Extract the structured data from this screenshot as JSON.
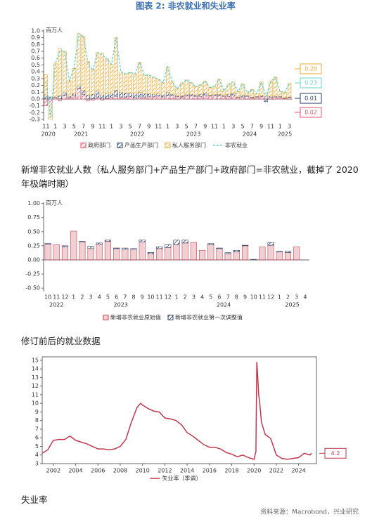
{
  "header": {
    "title": "图表 2:  非农就业和失业率"
  },
  "source": "资料来源：Macrobond，兴业研究",
  "chart_data": [
    {
      "type": "bar",
      "stacked": true,
      "caption": "新增非农就业人数（私人服务部门+产品生产部门+政府部门=非农就业，截掉了 2020 年极端时期）",
      "y_unit": "百万人",
      "categories": [
        "11",
        null,
        "1",
        null,
        "3",
        null,
        "5",
        null,
        "7",
        null,
        "9",
        null,
        "11",
        null,
        "1",
        null,
        "3",
        null,
        "5",
        null,
        "7",
        null,
        "9",
        null,
        "11",
        null,
        "1",
        null,
        "3",
        null,
        "5",
        null,
        "7",
        null,
        "9",
        null,
        "11",
        null,
        "1",
        null,
        "3",
        null,
        "5",
        null,
        "7",
        null,
        "9",
        null,
        "11",
        null,
        "1",
        null,
        "3"
      ],
      "year_groups": [
        {
          "label": "2020",
          "count": 2
        },
        {
          "label": "2021",
          "count": 12
        },
        {
          "label": "2022",
          "count": 12
        },
        {
          "label": "2023",
          "count": 12
        },
        {
          "label": "2024",
          "count": 12
        },
        {
          "label": "2025",
          "count": 3
        }
      ],
      "series": [
        {
          "name": "政府部门",
          "color": "#e8536a",
          "hatch": true,
          "end_label": "0.02",
          "values": [
            -0.1,
            -0.06,
            0.02,
            -0.03,
            0.05,
            0.02,
            0.05,
            0.15,
            0.07,
            -0.03,
            -0.02,
            0.03,
            -0.02,
            0.01,
            0.02,
            0.04,
            0.03,
            0.03,
            0.04,
            0.02,
            0.03,
            0.03,
            0.04,
            0.04,
            0.05,
            0.03,
            0.05,
            0.05,
            0.04,
            0.03,
            0.05,
            0.05,
            0.04,
            0.04,
            0.06,
            0.05,
            0.05,
            0.05,
            0.04,
            0.04,
            0.06,
            0.02,
            0.03,
            0.04,
            0.02,
            0.03,
            0.04,
            0.04,
            0.02,
            0.03,
            0.03,
            0.01,
            0.02
          ]
        },
        {
          "name": "产品生产部门",
          "color": "#2e3f66",
          "hatch": true,
          "end_label": "0.01",
          "values": [
            0.06,
            0.03,
            0.01,
            0.05,
            0.05,
            0.02,
            0.03,
            0.04,
            0.06,
            0.06,
            0.07,
            0.09,
            0.06,
            0.07,
            0.06,
            0.09,
            0.07,
            0.06,
            0.05,
            0.06,
            0.07,
            0.05,
            0.04,
            0.03,
            0.03,
            0.03,
            0.05,
            0.02,
            0.01,
            0.02,
            0.02,
            0.02,
            0.02,
            0.03,
            0.03,
            0.01,
            0.02,
            0.02,
            0.01,
            0.03,
            0.03,
            0.01,
            0.03,
            0.01,
            0.01,
            0.01,
            0.01,
            -0.04,
            0.02,
            0.01,
            0.01,
            0.01,
            0.01
          ]
        },
        {
          "name": "私人服务部门",
          "color": "#f0a830",
          "hatch": true,
          "end_label": "0.20",
          "values": [
            0.3,
            -0.24,
            0.49,
            0.69,
            0.6,
            0.23,
            0.37,
            0.77,
            0.79,
            0.49,
            0.37,
            0.56,
            0.61,
            0.51,
            0.43,
            0.77,
            0.3,
            0.28,
            0.3,
            0.29,
            0.44,
            0.27,
            0.27,
            0.25,
            0.21,
            0.18,
            0.37,
            0.18,
            0.1,
            0.18,
            0.21,
            0.17,
            0.12,
            0.14,
            0.17,
            0.11,
            0.11,
            0.22,
            0.07,
            0.15,
            0.16,
            0.08,
            0.16,
            0.04,
            0.11,
            0.04,
            0.2,
            0.04,
            0.22,
            0.28,
            0.07,
            0.08,
            0.2
          ]
        },
        {
          "name": "非农就业",
          "color": "#66d4cc",
          "type": "line",
          "end_label": "0.23",
          "values": [
            0.26,
            -0.27,
            0.52,
            0.71,
            0.7,
            0.27,
            0.45,
            0.96,
            0.92,
            0.52,
            0.42,
            0.68,
            0.65,
            0.59,
            0.51,
            0.9,
            0.4,
            0.37,
            0.39,
            0.37,
            0.54,
            0.35,
            0.35,
            0.32,
            0.29,
            0.24,
            0.47,
            0.25,
            0.15,
            0.23,
            0.28,
            0.24,
            0.18,
            0.21,
            0.26,
            0.17,
            0.18,
            0.29,
            0.12,
            0.22,
            0.25,
            0.11,
            0.22,
            0.09,
            0.14,
            0.08,
            0.25,
            0.04,
            0.26,
            0.32,
            0.11,
            0.1,
            0.23
          ]
        }
      ],
      "ylim": [
        -0.32,
        1.02
      ],
      "yticks": [
        {
          "value": 1,
          "label": "1.0"
        },
        0.9,
        0.8,
        0.7,
        0.6,
        0.5,
        0.4,
        0.3,
        0.2,
        0.1,
        {
          "value": 0,
          "label": "0.0"
        },
        -0.1,
        -0.2,
        -0.3
      ]
    },
    {
      "type": "bar",
      "stacked": true,
      "caption": "修订前后的就业数据",
      "y_unit": "百万人",
      "categories": [
        "10",
        "11",
        "12",
        "1",
        "2",
        "3",
        "4",
        "5",
        "6",
        "7",
        "8",
        "9",
        "10",
        "11",
        "12",
        "1",
        "2",
        "3",
        "4",
        "5",
        "6",
        "7",
        "8",
        "9",
        "10",
        "11",
        "12",
        "1",
        "2",
        "3",
        "4"
      ],
      "year_groups": [
        {
          "label": "2022",
          "count": 3
        },
        {
          "label": "2023",
          "count": 12
        },
        {
          "label": "2024",
          "count": 12
        },
        {
          "label": "2025",
          "count": 4
        }
      ],
      "series": [
        {
          "name": "新增非农就业原始值",
          "color": "#c9434f",
          "values": [
            0.28,
            0.27,
            0.25,
            0.51,
            0.32,
            0.24,
            0.28,
            0.33,
            0.21,
            0.19,
            0.19,
            0.32,
            0.13,
            0.2,
            0.22,
            0.27,
            0.3,
            0.31,
            0.17,
            0.27,
            0.21,
            0.11,
            0.14,
            0.25,
            0.01,
            0.23,
            0.26,
            0.14,
            0.13,
            0.23,
            null
          ]
        },
        {
          "name": "新增非农就业第一次调整值",
          "color": "#2e3f66",
          "hatch": true,
          "values": [
            0.01,
            0,
            -0.02,
            0,
            0.01,
            -0.04,
            0.02,
            0.02,
            -0.01,
            0.02,
            0.01,
            0.03,
            -0.02,
            0.03,
            0.05,
            0.08,
            0.05,
            0,
            0,
            0.02,
            -0.01,
            0.02,
            0.03,
            0.01,
            -0.01,
            0,
            0.05,
            0.01,
            0.02,
            null,
            null
          ]
        }
      ],
      "ylim": [
        -0.56,
        1.02
      ],
      "yticks": [
        {
          "value": 1,
          "label": "1.00"
        },
        0.75,
        {
          "value": 0.5,
          "label": "0.50"
        },
        0.25,
        {
          "value": 0,
          "label": "0.00"
        },
        -0.25,
        {
          "value": -0.5,
          "label": "-0.50"
        }
      ]
    },
    {
      "type": "line",
      "caption": "失业率",
      "x": [
        2001,
        2001.5,
        2002,
        2002.5,
        2003,
        2003.5,
        2004,
        2004.5,
        2005,
        2005.5,
        2006,
        2006.5,
        2007,
        2007.5,
        2008,
        2008.5,
        2009,
        2009.5,
        2009.83,
        2010,
        2010.5,
        2011,
        2011.5,
        2012,
        2012.5,
        2013,
        2013.5,
        2014,
        2014.5,
        2015,
        2015.5,
        2016,
        2016.5,
        2017,
        2017.5,
        2018,
        2018.5,
        2019,
        2019.5,
        2020,
        2020.17,
        2020.25,
        2020.33,
        2020.42,
        2020.5,
        2020.67,
        2021,
        2021.5,
        2022,
        2022.5,
        2023,
        2023.5,
        2024,
        2024.5,
        2025,
        2025.17
      ],
      "series": [
        {
          "name": "失业率（季调）",
          "color": "#c0394b",
          "end_label": "4.2",
          "values": [
            4.2,
            4.6,
            5.7,
            5.8,
            5.8,
            6.2,
            5.7,
            5.5,
            5.3,
            5,
            4.7,
            4.7,
            4.6,
            4.7,
            5,
            5.8,
            7.8,
            9.5,
            10,
            9.8,
            9.4,
            9.1,
            9,
            8.3,
            8.2,
            8,
            7.5,
            6.6,
            6.2,
            5.7,
            5.2,
            4.9,
            4.9,
            4.7,
            4.3,
            4.1,
            3.8,
            4,
            3.7,
            3.5,
            4.4,
            14.8,
            13.2,
            11,
            10.2,
            7.8,
            6.4,
            5.9,
            4,
            3.6,
            3.5,
            3.6,
            3.7,
            4.2,
            4,
            4.2
          ]
        }
      ],
      "xlim": [
        2001,
        2025.6
      ],
      "xticks": [
        2002,
        2004,
        2006,
        2008,
        2010,
        2012,
        2014,
        2016,
        2018,
        2020,
        2022,
        2024
      ],
      "ylim": [
        3,
        15.4
      ],
      "yticks": [
        3,
        4,
        5,
        6,
        7,
        8,
        9,
        10,
        11,
        12,
        13,
        14,
        15
      ]
    }
  ]
}
